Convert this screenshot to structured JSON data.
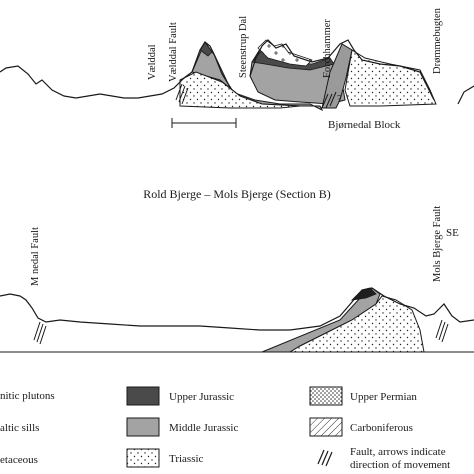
{
  "section_a": {
    "faults": [
      "Vælddal",
      "Vælddal Fault",
      "Steenstrup Dal",
      "Forchhammer",
      "Drømmebugten"
    ],
    "block_label": "Bjørnedal Block",
    "question_mark": "?"
  },
  "section_b": {
    "title": "Rold Bjerge – Mols Bjerge (Section B)",
    "left_fault": "M  nedal Fault",
    "right_fault": "Mols Bjerge Fault",
    "direction": "SE"
  },
  "legend": {
    "col1": [
      "nitic plutons",
      "altic sills",
      "etaceous"
    ],
    "col2": [
      "Upper Jurassic",
      "Middle Jurassic",
      "Triassic"
    ],
    "col3": [
      "Upper Permian",
      "Carboniferous",
      "Fault, arrows indicate",
      "direction of movement"
    ]
  },
  "colors": {
    "upper_jurassic": "#4a4a4a",
    "middle_jurassic": "#a3a3a3",
    "triassic": "#ffffff",
    "upper_permian": "#ffffff",
    "outline": "#1a1a1a"
  }
}
